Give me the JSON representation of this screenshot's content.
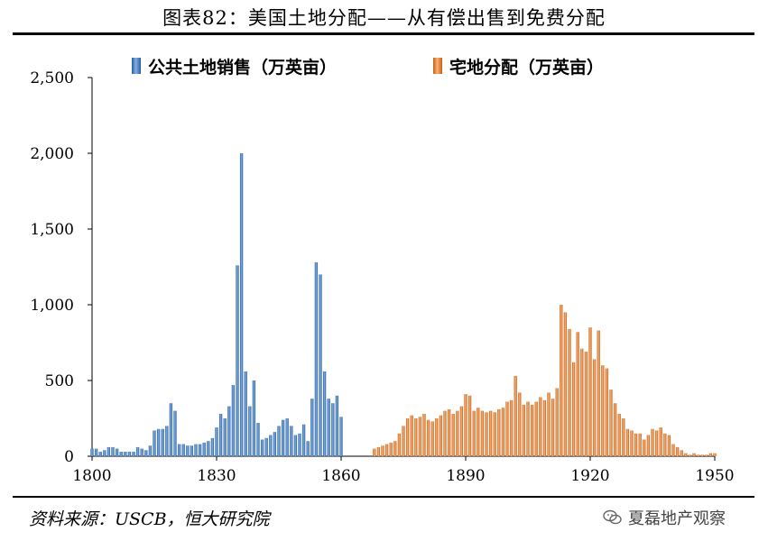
{
  "title": "图表82：美国土地分配——从有偿出售到免费分配",
  "source": "资料来源：USCB，恒大研究院",
  "watermark": "夏磊地产观察",
  "chart_data": {
    "type": "bar",
    "x_range": [
      1800,
      1950
    ],
    "ylim": [
      0,
      2500
    ],
    "y_ticks": [
      "0",
      "500",
      "1,000",
      "1,500",
      "2,000",
      "2,500"
    ],
    "y_tick_values": [
      0,
      500,
      1000,
      1500,
      2000,
      2500
    ],
    "x_ticks": [
      "1800",
      "1830",
      "1860",
      "1890",
      "1920",
      "1950"
    ],
    "x_tick_values": [
      1800,
      1830,
      1860,
      1890,
      1920,
      1950
    ],
    "legend_position": "top",
    "series": [
      {
        "name": "公共土地销售（万英亩）",
        "color": "#4a86c8",
        "x": [
          1800,
          1801,
          1802,
          1803,
          1804,
          1805,
          1806,
          1807,
          1808,
          1809,
          1810,
          1811,
          1812,
          1813,
          1814,
          1815,
          1816,
          1817,
          1818,
          1819,
          1820,
          1821,
          1822,
          1823,
          1824,
          1825,
          1826,
          1827,
          1828,
          1829,
          1830,
          1831,
          1832,
          1833,
          1834,
          1835,
          1836,
          1837,
          1838,
          1839,
          1840,
          1841,
          1842,
          1843,
          1844,
          1845,
          1846,
          1847,
          1848,
          1849,
          1850,
          1851,
          1852,
          1853,
          1854,
          1855,
          1856,
          1857,
          1858,
          1859,
          1860
        ],
        "values": [
          50,
          50,
          30,
          40,
          60,
          60,
          50,
          30,
          30,
          30,
          30,
          60,
          50,
          40,
          70,
          170,
          180,
          180,
          200,
          350,
          300,
          80,
          80,
          70,
          70,
          80,
          80,
          90,
          100,
          120,
          190,
          280,
          250,
          330,
          470,
          1260,
          2000,
          560,
          330,
          500,
          220,
          110,
          120,
          140,
          160,
          200,
          240,
          250,
          200,
          140,
          150,
          210,
          100,
          380,
          1280,
          1200,
          560,
          380,
          350,
          400,
          260
        ]
      },
      {
        "name": "宅地分配（万英亩）",
        "color": "#e8802e",
        "x": [
          1868,
          1869,
          1870,
          1871,
          1872,
          1873,
          1874,
          1875,
          1876,
          1877,
          1878,
          1879,
          1880,
          1881,
          1882,
          1883,
          1884,
          1885,
          1886,
          1887,
          1888,
          1889,
          1890,
          1891,
          1892,
          1893,
          1894,
          1895,
          1896,
          1897,
          1898,
          1899,
          1900,
          1901,
          1902,
          1903,
          1904,
          1905,
          1906,
          1907,
          1908,
          1909,
          1910,
          1911,
          1912,
          1913,
          1914,
          1915,
          1916,
          1917,
          1918,
          1919,
          1920,
          1921,
          1922,
          1923,
          1924,
          1925,
          1926,
          1927,
          1928,
          1929,
          1930,
          1931,
          1932,
          1933,
          1934,
          1935,
          1936,
          1937,
          1938,
          1939,
          1940,
          1941,
          1942,
          1943,
          1944,
          1945,
          1946,
          1947,
          1948,
          1949,
          1950
        ],
        "values": [
          50,
          60,
          70,
          80,
          90,
          100,
          150,
          200,
          250,
          270,
          250,
          260,
          280,
          240,
          230,
          250,
          270,
          300,
          310,
          280,
          300,
          330,
          410,
          400,
          300,
          320,
          300,
          290,
          300,
          290,
          310,
          320,
          360,
          370,
          530,
          420,
          340,
          360,
          340,
          360,
          390,
          370,
          420,
          380,
          450,
          1000,
          950,
          840,
          620,
          820,
          710,
          690,
          850,
          640,
          830,
          600,
          580,
          440,
          350,
          280,
          250,
          180,
          170,
          150,
          150,
          110,
          140,
          180,
          170,
          190,
          150,
          140,
          80,
          60,
          40,
          20,
          10,
          20,
          10,
          10,
          10,
          20,
          20
        ]
      }
    ]
  }
}
